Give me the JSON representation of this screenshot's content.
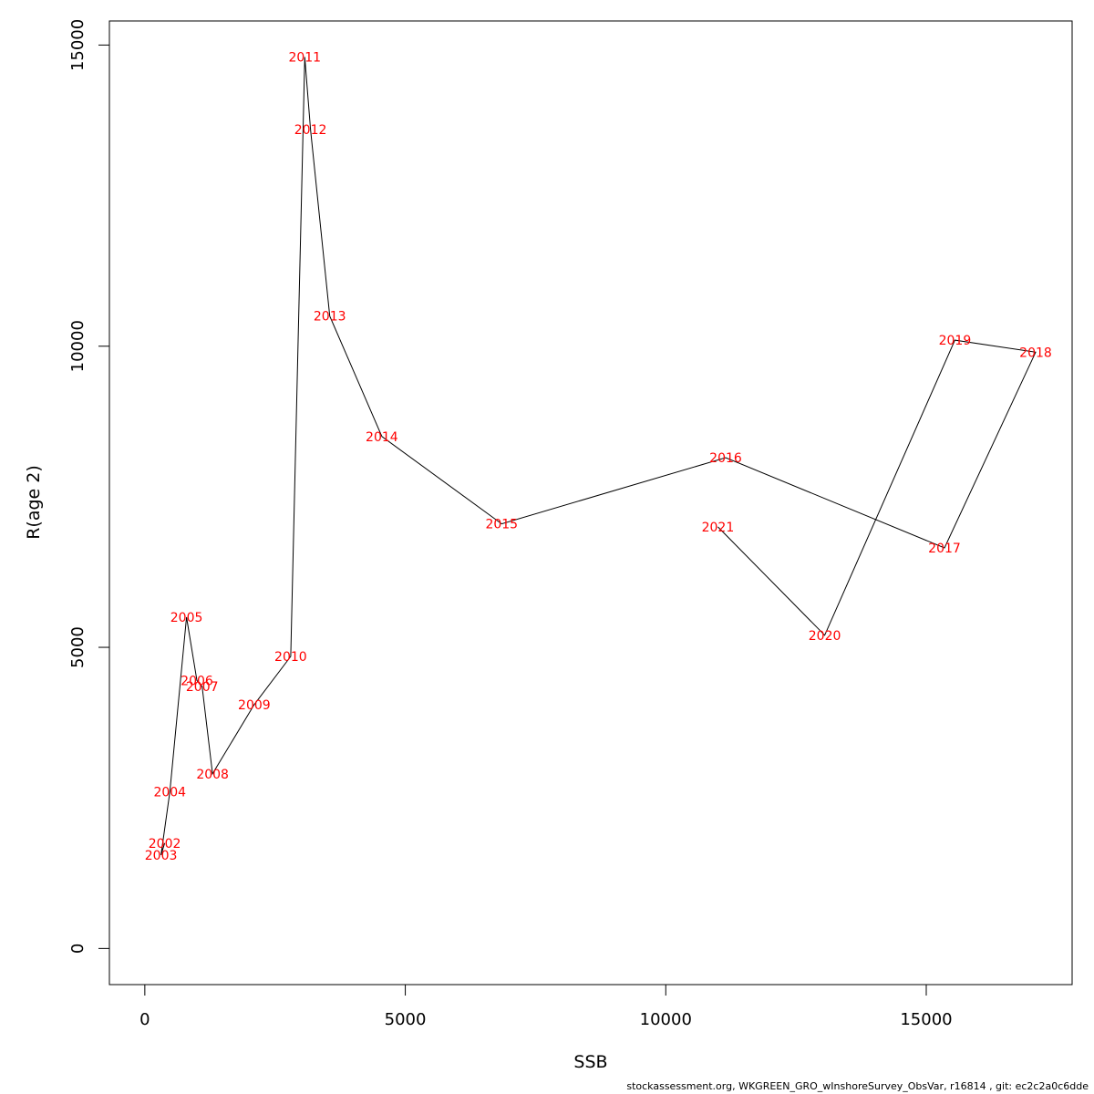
{
  "chart_data": {
    "type": "line",
    "xlabel": "SSB",
    "ylabel": "R(age 2)",
    "xlim": [
      -680,
      17800
    ],
    "ylim": [
      -600,
      15400
    ],
    "xticks": [
      0,
      5000,
      10000,
      15000
    ],
    "yticks": [
      0,
      5000,
      10000,
      15000
    ],
    "line_color": "#000000",
    "label_color": "#ff0000",
    "points": [
      {
        "label": "2002",
        "x": 380,
        "y": 1750
      },
      {
        "label": "2003",
        "x": 310,
        "y": 1550
      },
      {
        "label": "2004",
        "x": 480,
        "y": 2600
      },
      {
        "label": "2005",
        "x": 800,
        "y": 5500
      },
      {
        "label": "2006",
        "x": 1000,
        "y": 4450
      },
      {
        "label": "2007",
        "x": 1100,
        "y": 4350
      },
      {
        "label": "2008",
        "x": 1300,
        "y": 2900
      },
      {
        "label": "2009",
        "x": 2100,
        "y": 4050
      },
      {
        "label": "2010",
        "x": 2800,
        "y": 4850
      },
      {
        "label": "2011",
        "x": 3070,
        "y": 14800
      },
      {
        "label": "2012",
        "x": 3180,
        "y": 13600
      },
      {
        "label": "2013",
        "x": 3550,
        "y": 10500
      },
      {
        "label": "2014",
        "x": 4550,
        "y": 8500
      },
      {
        "label": "2015",
        "x": 6850,
        "y": 7050
      },
      {
        "label": "2016",
        "x": 11150,
        "y": 8150
      },
      {
        "label": "2017",
        "x": 15350,
        "y": 6650
      },
      {
        "label": "2018",
        "x": 17100,
        "y": 9900
      },
      {
        "label": "2019",
        "x": 15550,
        "y": 10100
      },
      {
        "label": "2020",
        "x": 13050,
        "y": 5200
      },
      {
        "label": "2021",
        "x": 11000,
        "y": 7000
      }
    ]
  },
  "footer": "stockassessment.org, WKGREEN_GRO_wInshoreSurvey_ObsVar, r16814 , git: ec2c2a0c6dde"
}
